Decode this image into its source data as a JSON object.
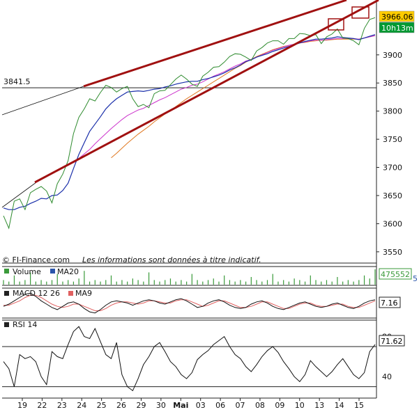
{
  "chart_data": {
    "type": "line",
    "x_labels": [
      "19",
      "22",
      "23",
      "24",
      "25",
      "26",
      "29",
      "30",
      "Mai",
      "03",
      "06",
      "07",
      "08",
      "09",
      "10",
      "13",
      "14",
      "15"
    ],
    "main": {
      "ylim": [
        3530,
        3995
      ],
      "yticks": [
        3550,
        3600,
        3650,
        3700,
        3750,
        3800,
        3850,
        3900
      ],
      "last_price": "3966.06",
      "time_badge": "10h13m",
      "reference_level": {
        "label": "3841.5",
        "value": 3841.5
      },
      "watermark": "Les informations sont données à titre indicatif.",
      "source": "© FI-Finance.com",
      "price": [
        3614,
        3592,
        3640,
        3644,
        3625,
        3655,
        3661,
        3666,
        3658,
        3637,
        3671,
        3688,
        3712,
        3760,
        3789,
        3804,
        3822,
        3818,
        3833,
        3846,
        3842,
        3834,
        3840,
        3844,
        3822,
        3808,
        3812,
        3806,
        3831,
        3836,
        3837,
        3847,
        3857,
        3864,
        3857,
        3848,
        3844,
        3862,
        3869,
        3878,
        3879,
        3887,
        3897,
        3902,
        3901,
        3896,
        3890,
        3907,
        3913,
        3921,
        3925,
        3925,
        3919,
        3929,
        3929,
        3938,
        3937,
        3934,
        3936,
        3920,
        3932,
        3937,
        3946,
        3930,
        3929,
        3925,
        3918,
        3947,
        3963,
        3966
      ],
      "ma20": [
        3628,
        3625,
        3625,
        3629,
        3631,
        3636,
        3640,
        3645,
        3644,
        3650,
        3651,
        3659,
        3672,
        3698,
        3723,
        3744,
        3764,
        3777,
        3790,
        3804,
        3814,
        3822,
        3828,
        3834,
        3835,
        3836,
        3835,
        3837,
        3839,
        3840,
        3843,
        3845,
        3848,
        3850,
        3852,
        3853,
        3853,
        3856,
        3858,
        3861,
        3864,
        3868,
        3873,
        3877,
        3882,
        3888,
        3891,
        3896,
        3899,
        3902,
        3906,
        3909,
        3912,
        3915,
        3918,
        3921,
        3924,
        3926,
        3928,
        3928,
        3929,
        3930,
        3932,
        3931,
        3930,
        3929,
        3927,
        3930,
        3933,
        3936
      ],
      "ma50": [
        null,
        null,
        null,
        null,
        null,
        null,
        null,
        null,
        null,
        null,
        null,
        null,
        null,
        3708,
        3716,
        3724,
        3732,
        3742,
        3751,
        3760,
        3769,
        3777,
        3785,
        3792,
        3797,
        3802,
        3805,
        3810,
        3815,
        3820,
        3824,
        3829,
        3834,
        3839,
        3842,
        3846,
        3848,
        3852,
        3857,
        3862,
        3866,
        3870,
        3875,
        3880,
        3884,
        3889,
        3892,
        3896,
        3900,
        3904,
        3908,
        3911,
        3914,
        3917,
        3919,
        3921,
        3923,
        3925,
        3926,
        3926,
        3927,
        3928,
        3929,
        3929,
        3929,
        3929,
        3928,
        3930,
        3932,
        3934
      ],
      "ma100": [
        null,
        null,
        null,
        null,
        null,
        null,
        null,
        null,
        null,
        null,
        null,
        null,
        null,
        null,
        null,
        null,
        null,
        null,
        null,
        null,
        3717,
        3725,
        3734,
        3743,
        3751,
        3759,
        3766,
        3773,
        3781,
        3788,
        3795,
        3801,
        3808,
        3815,
        3822,
        3828,
        3834,
        3840,
        3846,
        3852,
        3858,
        3864,
        3870,
        3876,
        3881,
        3887,
        3892,
        3897,
        3901,
        3905,
        3909,
        3912,
        3915,
        3917,
        3919,
        3921,
        3922,
        3924,
        3925,
        3926,
        3926,
        3927,
        3928,
        3928,
        3928,
        3928,
        3928,
        3930,
        3932,
        3934
      ]
    },
    "volume": {
      "legend": [
        "Volume",
        "MA20"
      ],
      "last_value": "475552",
      "extra": "5",
      "values": [
        0.3,
        0.2,
        0.6,
        0.2,
        0.3,
        0.8,
        0.2,
        0.3,
        0.2,
        0.3,
        0.7,
        0.2,
        0.3,
        0.2,
        0.4,
        0.9,
        0.2,
        0.3,
        0.2,
        0.3,
        0.6,
        0.2,
        0.3,
        0.2,
        0.4,
        0.3,
        0.2,
        0.8,
        0.3,
        0.2,
        0.3,
        0.4,
        0.2,
        0.3,
        0.2,
        0.7,
        0.3,
        0.2,
        0.3,
        0.4,
        0.2,
        0.6,
        0.3,
        0.2,
        0.3,
        0.2,
        0.5,
        0.3,
        0.2,
        0.3,
        0.7,
        0.2,
        0.3,
        0.2,
        0.4,
        0.3,
        0.2,
        0.6,
        0.3,
        0.2,
        0.3,
        0.2,
        0.5,
        0.2,
        0.3,
        0.2,
        0.3,
        0.6,
        0.4,
        1.0
      ]
    },
    "macd": {
      "legend": [
        "MACD 12 26",
        "MA9"
      ],
      "last_value": "7.16",
      "macd": [
        -0.2,
        0.0,
        0.3,
        0.6,
        0.9,
        1.0,
        0.7,
        0.3,
        0.0,
        -0.3,
        -0.5,
        -0.2,
        0.1,
        0.2,
        0.0,
        -0.4,
        -0.7,
        -0.8,
        -0.5,
        -0.1,
        0.2,
        0.3,
        0.2,
        0.1,
        -0.1,
        0.1,
        0.3,
        0.4,
        0.3,
        0.1,
        0.0,
        0.2,
        0.4,
        0.5,
        0.3,
        0.0,
        -0.3,
        -0.2,
        0.1,
        0.3,
        0.4,
        0.2,
        -0.1,
        -0.3,
        -0.4,
        -0.3,
        0.0,
        0.2,
        0.3,
        0.1,
        -0.2,
        -0.4,
        -0.5,
        -0.3,
        -0.1,
        0.1,
        0.2,
        0.0,
        -0.2,
        -0.3,
        -0.2,
        0.0,
        0.1,
        -0.1,
        -0.3,
        -0.4,
        -0.2,
        0.1,
        0.3,
        0.4
      ],
      "ma9": [
        -0.1,
        -0.1,
        0.1,
        0.3,
        0.6,
        0.8,
        0.8,
        0.6,
        0.3,
        0.0,
        -0.2,
        -0.3,
        -0.2,
        0.0,
        0.0,
        -0.2,
        -0.4,
        -0.6,
        -0.6,
        -0.4,
        -0.1,
        0.1,
        0.2,
        0.2,
        0.1,
        0.0,
        0.1,
        0.3,
        0.3,
        0.2,
        0.1,
        0.1,
        0.3,
        0.4,
        0.4,
        0.2,
        0.0,
        -0.2,
        -0.1,
        0.1,
        0.3,
        0.3,
        0.1,
        -0.1,
        -0.3,
        -0.3,
        -0.2,
        0.0,
        0.2,
        0.2,
        0.0,
        -0.2,
        -0.4,
        -0.4,
        -0.2,
        0.0,
        0.1,
        0.1,
        -0.1,
        -0.2,
        -0.2,
        -0.1,
        0.0,
        0.0,
        -0.2,
        -0.3,
        -0.3,
        -0.1,
        0.1,
        0.3
      ]
    },
    "rsi": {
      "legend": "RSI 14",
      "last_value": "71.62",
      "ylim": [
        20,
        95
      ],
      "levels": [
        30,
        70
      ],
      "yticks": [
        40,
        80
      ],
      "values": [
        55,
        48,
        30,
        62,
        58,
        60,
        55,
        40,
        32,
        65,
        60,
        58,
        72,
        85,
        90,
        80,
        78,
        88,
        75,
        62,
        58,
        74,
        42,
        30,
        26,
        38,
        52,
        60,
        70,
        74,
        65,
        55,
        50,
        42,
        38,
        44,
        57,
        62,
        66,
        72,
        76,
        80,
        70,
        62,
        58,
        50,
        45,
        52,
        60,
        66,
        70,
        64,
        55,
        48,
        40,
        35,
        42,
        56,
        50,
        45,
        40,
        45,
        52,
        58,
        50,
        42,
        38,
        44,
        65,
        72
      ]
    }
  }
}
